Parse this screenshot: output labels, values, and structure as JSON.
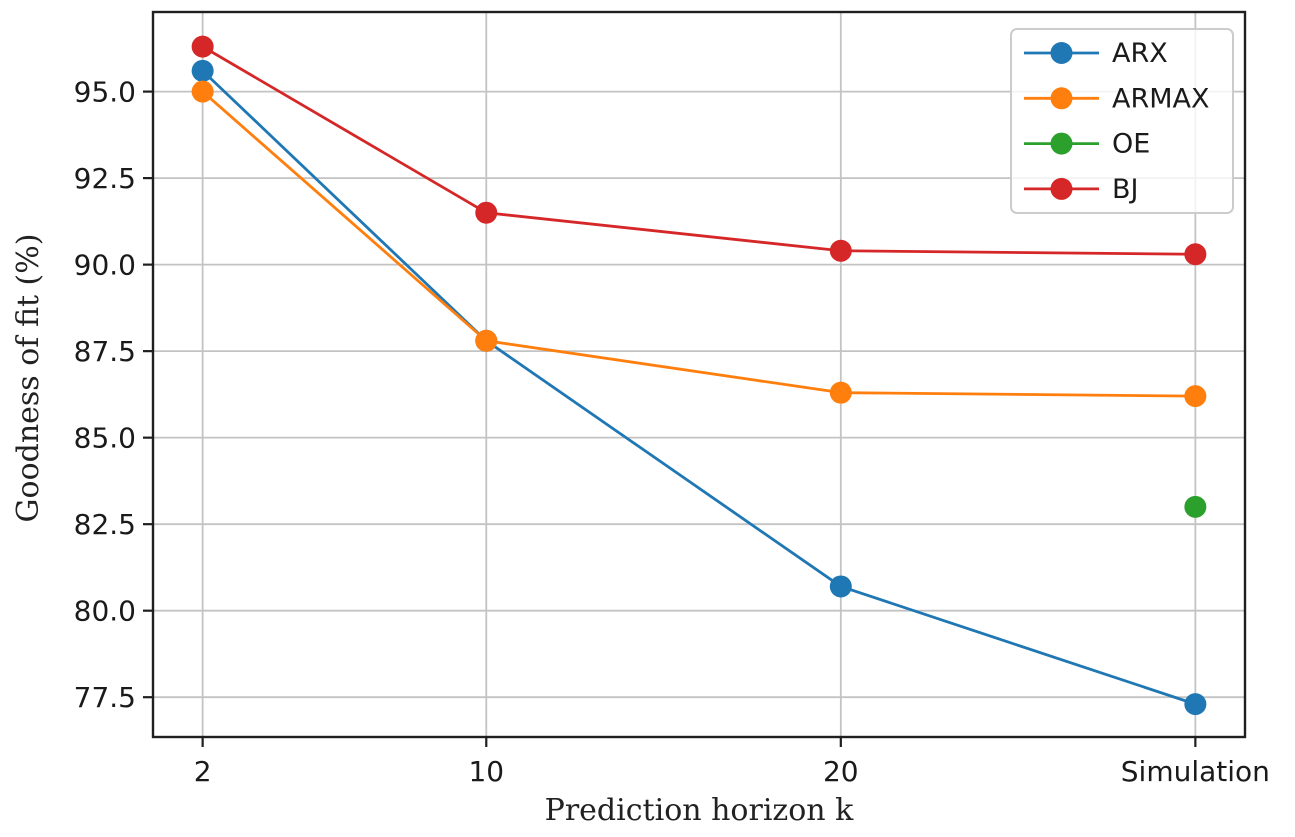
{
  "figure": {
    "background": "#ffffff",
    "spine_color": "#1f1f1f",
    "grid_color": "#c3c3c3",
    "tick_color": "#1f1f1f",
    "tick_label_color": "#1a1a1a",
    "legend_border_color": "#cccccc",
    "legend_background": "rgba(255,255,255,0.8)"
  },
  "chart_data": {
    "type": "line",
    "title": "",
    "xlabel": "Prediction horizon k",
    "ylabel": "Goodness of fit (%)",
    "grid": true,
    "legend_position": "upper right",
    "x_tick_labels": [
      "2",
      "10",
      "20",
      "Simulation"
    ],
    "x_tick_values": [
      2,
      10,
      20,
      30
    ],
    "y_ticks": [
      77.5,
      80.0,
      82.5,
      85.0,
      87.5,
      90.0,
      92.5,
      95.0
    ],
    "xlim": [
      0.6,
      31.4
    ],
    "ylim": [
      76.35,
      97.3
    ],
    "series": [
      {
        "name": "ARX",
        "color": "#1f77b4",
        "x": [
          2,
          10,
          20,
          30
        ],
        "values": [
          95.6,
          87.8,
          80.7,
          77.3
        ]
      },
      {
        "name": "ARMAX",
        "color": "#ff7f0e",
        "x": [
          2,
          10,
          20,
          30
        ],
        "values": [
          95.0,
          87.8,
          86.3,
          86.2
        ]
      },
      {
        "name": "OE",
        "color": "#2ca02c",
        "x": [
          30
        ],
        "values": [
          83.0
        ]
      },
      {
        "name": "BJ",
        "color": "#d62728",
        "x": [
          2,
          10,
          20,
          30
        ],
        "values": [
          96.3,
          91.5,
          90.4,
          90.3
        ]
      }
    ],
    "legend_entries": [
      "ARX",
      "ARMAX",
      "OE",
      "BJ"
    ]
  }
}
